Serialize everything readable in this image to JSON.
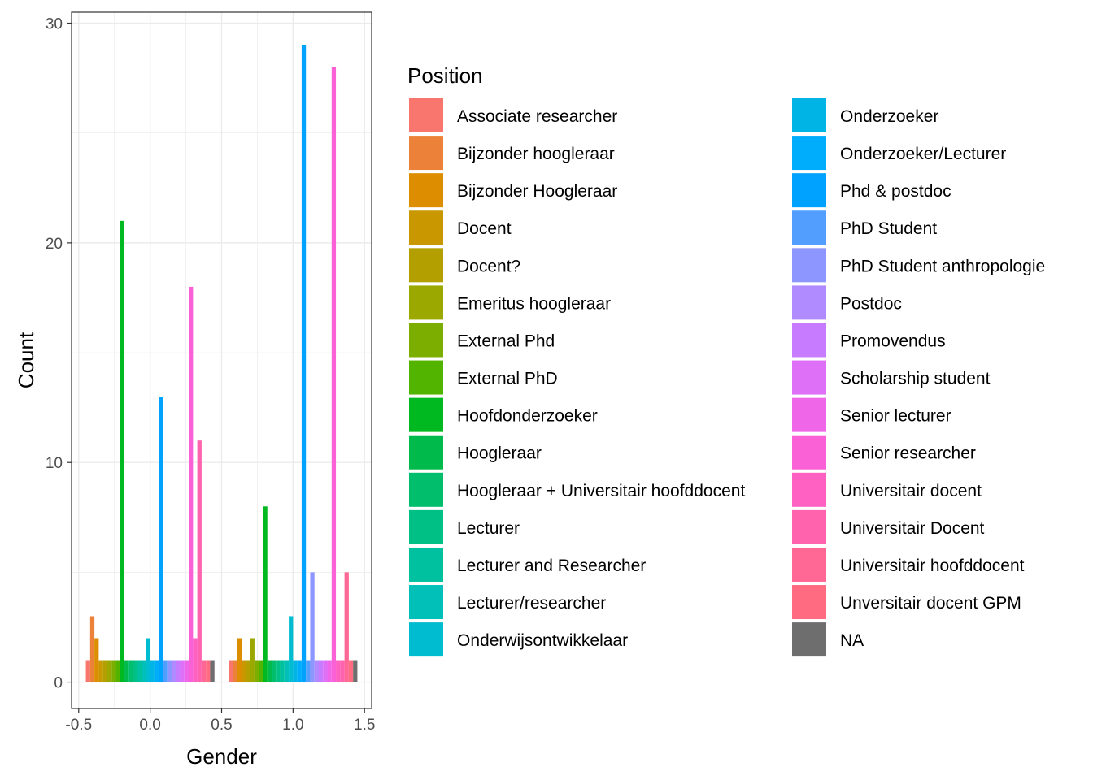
{
  "chart_data": {
    "type": "bar",
    "xlabel": "Gender",
    "ylabel": "Count",
    "xlim": [
      -0.55,
      1.55
    ],
    "ylim": [
      -1.2,
      30.5
    ],
    "x_ticks": [
      "-0.5",
      "0.0",
      "0.5",
      "1.0",
      "1.5"
    ],
    "x_tick_values": [
      -0.5,
      0.0,
      0.5,
      1.0,
      1.5
    ],
    "y_ticks": [
      "0",
      "10",
      "20",
      "30"
    ],
    "y_tick_values": [
      0,
      10,
      20,
      30
    ],
    "grid": true,
    "groups": [
      0,
      1
    ],
    "group_width": 0.9,
    "legend": {
      "title": "Position",
      "placement": "right",
      "columns": 2
    },
    "series": [
      {
        "name": "Associate researcher",
        "color": "#F8766D",
        "values": [
          1,
          1
        ]
      },
      {
        "name": "Bijzonder hoogleraar",
        "color": "#EC8239",
        "values": [
          3,
          1
        ]
      },
      {
        "name": "Bijzonder Hoogleraar",
        "color": "#DC8E00",
        "values": [
          2,
          2
        ]
      },
      {
        "name": "Docent",
        "color": "#C99800",
        "values": [
          1,
          1
        ]
      },
      {
        "name": "Docent?",
        "color": "#B3A000",
        "values": [
          1,
          1
        ]
      },
      {
        "name": "Emeritus hoogleraar",
        "color": "#9AA800",
        "values": [
          1,
          2
        ]
      },
      {
        "name": "External Phd",
        "color": "#7CAE00",
        "values": [
          1,
          1
        ]
      },
      {
        "name": "External PhD",
        "color": "#53B400",
        "values": [
          1,
          1
        ]
      },
      {
        "name": "Hoofdonderzoeker",
        "color": "#00B81F",
        "values": [
          21,
          8
        ]
      },
      {
        "name": "Hoogleraar",
        "color": "#00BB4B",
        "values": [
          1,
          1
        ]
      },
      {
        "name": "Hoogleraar + Universitair hoofddocent",
        "color": "#00BE6B",
        "values": [
          1,
          1
        ]
      },
      {
        "name": "Lecturer",
        "color": "#00C086",
        "values": [
          1,
          1
        ]
      },
      {
        "name": "Lecturer and Researcher",
        "color": "#00C19F",
        "values": [
          1,
          1
        ]
      },
      {
        "name": "Lecturer/researcher",
        "color": "#00C0B8",
        "values": [
          1,
          1
        ]
      },
      {
        "name": "Onderwijsontwikkelaar",
        "color": "#00BCD0",
        "values": [
          2,
          3
        ]
      },
      {
        "name": "Onderzoeker",
        "color": "#00B5E5",
        "values": [
          1,
          1
        ]
      },
      {
        "name": "Onderzoeker/Lecturer",
        "color": "#00ACFC",
        "values": [
          1,
          1
        ]
      },
      {
        "name": "Phd & postdoc",
        "color": "#00A2FF",
        "values": [
          13,
          29
        ]
      },
      {
        "name": "PhD Student",
        "color": "#529EFF",
        "values": [
          1,
          1
        ]
      },
      {
        "name": "PhD Student anthropologie",
        "color": "#8D96FF",
        "values": [
          1,
          5
        ]
      },
      {
        "name": "Postdoc",
        "color": "#B08AFF",
        "values": [
          1,
          1
        ]
      },
      {
        "name": "Promovendus",
        "color": "#C77CFF",
        "values": [
          1,
          1
        ]
      },
      {
        "name": "Scholarship student",
        "color": "#DE6FF7",
        "values": [
          1,
          1
        ]
      },
      {
        "name": "Senior lecturer",
        "color": "#F066E8",
        "values": [
          1,
          1
        ]
      },
      {
        "name": "Senior researcher",
        "color": "#FB61D7",
        "values": [
          18,
          28
        ]
      },
      {
        "name": "Universitair docent",
        "color": "#FF61C3",
        "values": [
          2,
          1
        ]
      },
      {
        "name": "Universitair Docent",
        "color": "#FF63AD",
        "values": [
          11,
          1
        ]
      },
      {
        "name": "Universitair hoofddocent",
        "color": "#FF6895",
        "values": [
          1,
          5
        ]
      },
      {
        "name": "Unversitair docent GPM",
        "color": "#FF6C81",
        "values": [
          1,
          1
        ]
      },
      {
        "name": "NA",
        "color": "#6E6E6E",
        "values": [
          1,
          1
        ]
      }
    ]
  }
}
